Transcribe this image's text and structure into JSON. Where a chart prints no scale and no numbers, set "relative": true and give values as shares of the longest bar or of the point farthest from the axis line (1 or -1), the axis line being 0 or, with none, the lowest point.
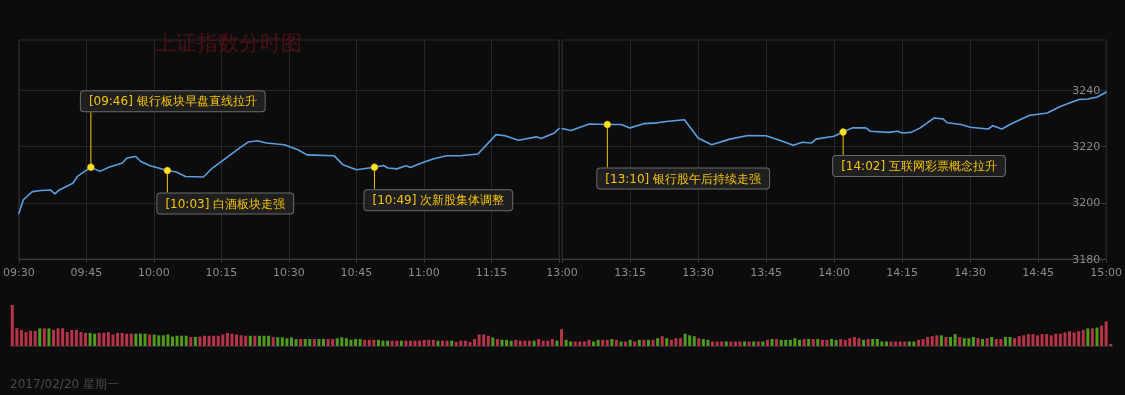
{
  "chart_data": [
    {
      "type": "line",
      "title": "上证指数分时图",
      "grid": true,
      "marker": "none",
      "tick_labels": "x",
      "x": [
        9.5,
        9.5167,
        9.55,
        9.5833,
        9.6167,
        9.6333,
        9.65,
        9.7,
        9.7167,
        9.7667,
        9.8,
        9.8333,
        9.8833,
        9.9,
        9.9333,
        9.95,
        9.9833,
        10.05,
        10.0833,
        10.1167,
        10.1833,
        10.2167,
        10.2833,
        10.3167,
        10.35,
        10.3833,
        10.4167,
        10.4833,
        10.5333,
        10.5667,
        10.6667,
        10.7,
        10.75,
        10.8167,
        10.85,
        10.8667,
        10.9,
        10.9333,
        10.95,
        10.9833,
        11.0333,
        11.0833,
        11.1333,
        11.2,
        11.2667,
        11.3,
        11.35,
        11.4167,
        11.4333,
        11.4833,
        11.5
      ],
      "series": [
        {
          "color": "#5a9fe0",
          "values": [
            3196.3,
            3201.1,
            3204.0,
            3204.4,
            3204.6,
            3203.2,
            3204.6,
            3207.0,
            3209.4,
            3212.7,
            3211.2,
            3212.7,
            3214.2,
            3216.0,
            3216.5,
            3214.8,
            3213.3,
            3211.5,
            3211.0,
            3209.4,
            3209.2,
            3212.4,
            3217.1,
            3219.5,
            3221.7,
            3222.1,
            3221.3,
            3220.7,
            3218.9,
            3217.1,
            3216.8,
            3213.6,
            3211.8,
            3212.7,
            3213.3,
            3212.4,
            3212.1,
            3213.2,
            3212.6,
            3213.9,
            3215.6,
            3216.8,
            3216.8,
            3217.4,
            3224.3,
            3223.9,
            3222.3,
            3223.5,
            3222.9,
            3224.9,
            3226.5
          ]
        }
      ],
      "xlim": [
        9.5,
        11.5
      ],
      "xticks": [
        {
          "value": 9.5,
          "label": "09:30"
        },
        {
          "value": 9.75,
          "label": "09:45"
        },
        {
          "value": 10,
          "label": "10:00"
        },
        {
          "value": 10.25,
          "label": "10:15"
        },
        {
          "value": 10.5,
          "label": "10:30"
        },
        {
          "value": 10.75,
          "label": "10:45"
        },
        {
          "value": 11,
          "label": "11:00"
        },
        {
          "value": 11.25,
          "label": "11:15"
        },
        {
          "value": 11.5,
          "label": null
        }
      ],
      "ylim": [
        3180,
        3258
      ],
      "yticks": [
        3180,
        3200,
        3220,
        3240
      ],
      "annotations": [
        {
          "text": "[09:46] 银行板块早盘直线拉升",
          "x": 9.7667,
          "y": 3212.7
        },
        {
          "text": "[10:03] 白酒板块走强",
          "x": 10.05,
          "y": 3211.5
        },
        {
          "text": "[10:49] 次新股集体调整",
          "x": 10.8167,
          "y": 3212.7
        }
      ]
    },
    {
      "type": "line",
      "grid": true,
      "marker": "none",
      "x": [
        13.0,
        13.0333,
        13.1,
        13.1667,
        13.2167,
        13.25,
        13.3,
        13.35,
        13.3833,
        13.45,
        13.5,
        13.55,
        13.6167,
        13.6833,
        13.75,
        13.8,
        13.85,
        13.8833,
        13.9167,
        13.9333,
        14.0,
        14.0333,
        14.0667,
        14.1167,
        14.1333,
        14.2,
        14.2333,
        14.25,
        14.2833,
        14.3167,
        14.3667,
        14.4,
        14.4167,
        14.4667,
        14.5,
        14.5667,
        14.5833,
        14.6167,
        14.65,
        14.7167,
        14.7833,
        14.8333,
        14.9,
        14.9333,
        14.9667,
        15.0
      ],
      "series": [
        {
          "color": "#5a9fe0",
          "values": [
            3226.5,
            3225.8,
            3228.1,
            3227.9,
            3227.9,
            3226.7,
            3228.2,
            3228.5,
            3229.0,
            3229.6,
            3223.1,
            3220.7,
            3222.7,
            3224.0,
            3223.9,
            3222.3,
            3220.5,
            3221.6,
            3221.3,
            3222.7,
            3223.7,
            3225.2,
            3226.7,
            3226.7,
            3225.5,
            3225.1,
            3225.5,
            3224.9,
            3225.1,
            3226.7,
            3230.2,
            3229.9,
            3228.5,
            3227.9,
            3226.9,
            3226.3,
            3227.5,
            3226.3,
            3228.1,
            3231.1,
            3232.0,
            3234.4,
            3236.8,
            3237.0,
            3237.7,
            3239.4
          ]
        }
      ],
      "xlim": [
        13,
        15
      ],
      "xticks": [
        {
          "value": 13,
          "label": "13:00"
        },
        {
          "value": 13.25,
          "label": "13:15"
        },
        {
          "value": 13.5,
          "label": "13:30"
        },
        {
          "value": 13.75,
          "label": "13:45"
        },
        {
          "value": 14,
          "label": "14:00"
        },
        {
          "value": 14.25,
          "label": "14:15"
        },
        {
          "value": 14.5,
          "label": "14:30"
        },
        {
          "value": 14.75,
          "label": "14:45"
        },
        {
          "value": 15,
          "label": "15:00"
        }
      ],
      "ylim": [
        3180,
        3258
      ],
      "yticks": [
        3180,
        3200,
        3220,
        3240
      ],
      "annotations": [
        {
          "text": "[13:10] 银行股午后持续走强",
          "x": 13.1667,
          "y": 3227.9
        },
        {
          "text": "[14:02] 互联网彩票概念拉升",
          "x": 14.0333,
          "y": 3225.2
        }
      ]
    },
    {
      "type": "bar",
      "relative": true,
      "categories": [
        null,
        null,
        null,
        null,
        null,
        null,
        null,
        null,
        null,
        null,
        null,
        null,
        null,
        null,
        null,
        null,
        null,
        null,
        null,
        null,
        null,
        null,
        null,
        null,
        null,
        null,
        null,
        null,
        null,
        null,
        null,
        null,
        null,
        null,
        null,
        null,
        null,
        null,
        null,
        null,
        null,
        null,
        null,
        null,
        null,
        null,
        null,
        null,
        null,
        null,
        null,
        null,
        null,
        null,
        null,
        null,
        null,
        null,
        null,
        null,
        null,
        null,
        null,
        null,
        null,
        null,
        null,
        null,
        null,
        null,
        null,
        null,
        null,
        null,
        null,
        null,
        null,
        null,
        null,
        null,
        null,
        null,
        null,
        null,
        null,
        null,
        null,
        null,
        null,
        null,
        null,
        null,
        null,
        null,
        null,
        null,
        null,
        null,
        null,
        null,
        null,
        null,
        null,
        null,
        null,
        null,
        null,
        null,
        null,
        null,
        null,
        null,
        null,
        null,
        null,
        null,
        null,
        null,
        null,
        null,
        null,
        null,
        null,
        null,
        null,
        null,
        null,
        null,
        null,
        null,
        null,
        null,
        null,
        null,
        null,
        null,
        null,
        null,
        null,
        null,
        null,
        null,
        null,
        null,
        null,
        null,
        null,
        null,
        null,
        null,
        null,
        null,
        null,
        null,
        null,
        null,
        null,
        null,
        null,
        null,
        null,
        null,
        null,
        null,
        null,
        null,
        null,
        null,
        null,
        null,
        null,
        null,
        null,
        null,
        null,
        null,
        null,
        null,
        null,
        null,
        null,
        null,
        null,
        null,
        null,
        null,
        null,
        null,
        null,
        null,
        null,
        null,
        null,
        null,
        null,
        null,
        null,
        null,
        null,
        null,
        null,
        null,
        null,
        null,
        null,
        null,
        null,
        null,
        null,
        null,
        null,
        null,
        null,
        null,
        null,
        null,
        null,
        null,
        null,
        null,
        null,
        null,
        null,
        null,
        null,
        null,
        null,
        null,
        null,
        null,
        null,
        null,
        null,
        null,
        null,
        null,
        null,
        null,
        null,
        null,
        null
      ],
      "values": [
        1.0,
        0.43,
        0.39,
        0.34,
        0.37,
        0.37,
        0.43,
        0.43,
        0.43,
        0.39,
        0.43,
        0.43,
        0.34,
        0.39,
        0.39,
        0.34,
        0.32,
        0.32,
        0.3,
        0.32,
        0.32,
        0.34,
        0.28,
        0.32,
        0.32,
        0.3,
        0.3,
        0.3,
        0.3,
        0.3,
        0.28,
        0.28,
        0.26,
        0.26,
        0.28,
        0.23,
        0.25,
        0.25,
        0.25,
        0.22,
        0.22,
        0.23,
        0.25,
        0.25,
        0.25,
        0.25,
        0.28,
        0.32,
        0.3,
        0.28,
        0.26,
        0.25,
        0.25,
        0.25,
        0.25,
        0.25,
        0.25,
        0.22,
        0.21,
        0.21,
        0.19,
        0.21,
        0.17,
        0.17,
        0.17,
        0.17,
        0.17,
        0.17,
        0.17,
        0.17,
        0.17,
        0.19,
        0.21,
        0.19,
        0.15,
        0.17,
        0.17,
        0.15,
        0.15,
        0.15,
        0.15,
        0.13,
        0.13,
        0.13,
        0.13,
        0.13,
        0.13,
        0.13,
        0.13,
        0.13,
        0.15,
        0.15,
        0.15,
        0.13,
        0.13,
        0.13,
        0.13,
        0.1,
        0.13,
        0.13,
        0.1,
        0.17,
        0.28,
        0.28,
        0.25,
        0.21,
        0.17,
        0.15,
        0.15,
        0.13,
        0.15,
        0.13,
        0.13,
        0.13,
        0.13,
        0.17,
        0.13,
        0.13,
        0.17,
        0.13,
        0.41,
        0.15,
        0.11,
        0.11,
        0.11,
        0.11,
        0.15,
        0.11,
        0.15,
        0.15,
        0.15,
        0.17,
        0.15,
        0.11,
        0.11,
        0.15,
        0.11,
        0.15,
        0.15,
        0.15,
        0.15,
        0.19,
        0.24,
        0.19,
        0.15,
        0.19,
        0.19,
        0.3,
        0.26,
        0.24,
        0.19,
        0.17,
        0.15,
        0.11,
        0.11,
        0.11,
        0.11,
        0.11,
        0.11,
        0.11,
        0.11,
        0.11,
        0.11,
        0.11,
        0.11,
        0.15,
        0.17,
        0.17,
        0.15,
        0.15,
        0.15,
        0.19,
        0.15,
        0.17,
        0.17,
        0.17,
        0.17,
        0.15,
        0.15,
        0.17,
        0.15,
        0.17,
        0.15,
        0.19,
        0.22,
        0.19,
        0.15,
        0.17,
        0.17,
        0.17,
        0.11,
        0.11,
        0.11,
        0.11,
        0.11,
        0.11,
        0.11,
        0.11,
        0.15,
        0.17,
        0.22,
        0.24,
        0.26,
        0.26,
        0.22,
        0.22,
        0.29,
        0.22,
        0.19,
        0.19,
        0.22,
        0.19,
        0.17,
        0.19,
        0.22,
        0.17,
        0.17,
        0.22,
        0.22,
        0.19,
        0.24,
        0.26,
        0.29,
        0.29,
        0.26,
        0.29,
        0.29,
        0.26,
        0.3,
        0.3,
        0.33,
        0.36,
        0.33,
        0.36,
        0.39,
        0.43,
        0.43,
        0.45,
        0.5,
        0.6,
        0.05
      ],
      "colors": [
        "#b5344a",
        "#b5344a",
        "#b5344a",
        "#b5344a",
        "#b5344a",
        "#b5344a",
        "#4f9a1f",
        "#b5344a",
        "#4f9a1f",
        "#b5344a",
        "#b5344a",
        "#b5344a",
        "#b5344a",
        "#b5344a",
        "#b5344a",
        "#b5344a",
        "#b5344a",
        "#4f9a1f",
        "#4f9a1f",
        "#b5344a",
        "#b5344a",
        "#b5344a",
        "#b5344a",
        "#b5344a",
        "#b5344a",
        "#b5344a",
        "#b5344a",
        "#4f9a1f",
        "#4f9a1f",
        "#4f9a1f",
        "#b5344a",
        "#4f9a1f",
        "#4f9a1f",
        "#4f9a1f",
        "#4f9a1f",
        "#4f9a1f",
        "#4f9a1f",
        "#4f9a1f",
        "#4f9a1f",
        "#b5344a",
        "#4f9a1f",
        "#b5344a",
        "#b5344a",
        "#b5344a",
        "#b5344a",
        "#b5344a",
        "#b5344a",
        "#b5344a",
        "#b5344a",
        "#b5344a",
        "#b5344a",
        "#b5344a",
        "#4f9a1f",
        "#b5344a",
        "#4f9a1f",
        "#4f9a1f",
        "#4f9a1f",
        "#b5344a",
        "#4f9a1f",
        "#4f9a1f",
        "#4f9a1f",
        "#4f9a1f",
        "#4f9a1f",
        "#b5344a",
        "#4f9a1f",
        "#4f9a1f",
        "#b5344a",
        "#4f9a1f",
        "#4f9a1f",
        "#b5344a",
        "#b5344a",
        "#4f9a1f",
        "#4f9a1f",
        "#4f9a1f",
        "#4f9a1f",
        "#4f9a1f",
        "#4f9a1f",
        "#b5344a",
        "#b5344a",
        "#b5344a",
        "#4f9a1f",
        "#4f9a1f",
        "#4f9a1f",
        "#b5344a",
        "#b5344a",
        "#4f9a1f",
        "#b5344a",
        "#b5344a",
        "#b5344a",
        "#b5344a",
        "#b5344a",
        "#b5344a",
        "#b5344a",
        "#4f9a1f",
        "#b5344a",
        "#b5344a",
        "#4f9a1f",
        "#b5344a",
        "#b5344a",
        "#b5344a",
        "#b5344a",
        "#b5344a",
        "#b5344a",
        "#b5344a",
        "#b5344a",
        "#4f9a1f",
        "#b5344a",
        "#4f9a1f",
        "#4f9a1f",
        "#4f9a1f",
        "#b5344a",
        "#b5344a",
        "#b5344a",
        "#b5344a",
        "#4f9a1f",
        "#b5344a",
        "#b5344a",
        "#b5344a",
        "#b5344a",
        "#4f9a1f",
        "#b5344a",
        "#4f9a1f",
        "#4f9a1f",
        "#b5344a",
        "#b5344a",
        "#b5344a",
        "#b5344a",
        "#4f9a1f",
        "#4f9a1f",
        "#b5344a",
        "#b5344a",
        "#4f9a1f",
        "#b5344a",
        "#4f9a1f",
        "#b5344a",
        "#4f9a1f",
        "#b5344a",
        "#4f9a1f",
        "#b5344a",
        "#4f9a1f",
        "#b5344a",
        "#4f9a1f",
        "#b5344a",
        "#4f9a1f",
        "#b5344a",
        "#b5344a",
        "#b5344a",
        "#4f9a1f",
        "#4f9a1f",
        "#4f9a1f",
        "#b5344a",
        "#4f9a1f",
        "#4f9a1f",
        "#b5344a",
        "#b5344a",
        "#b5344a",
        "#4f9a1f",
        "#b5344a",
        "#b5344a",
        "#b5344a",
        "#4f9a1f",
        "#b5344a",
        "#4f9a1f",
        "#b5344a",
        "#4f9a1f",
        "#b5344a",
        "#4f9a1f",
        "#b5344a",
        "#4f9a1f",
        "#4f9a1f",
        "#4f9a1f",
        "#4f9a1f",
        "#4f9a1f",
        "#b5344a",
        "#4f9a1f",
        "#b5344a",
        "#4f9a1f",
        "#b5344a",
        "#b5344a",
        "#4f9a1f",
        "#4f9a1f",
        "#b5344a",
        "#b5344a",
        "#b5344a",
        "#b5344a",
        "#b5344a",
        "#4f9a1f",
        "#b5344a",
        "#4f9a1f",
        "#4f9a1f",
        "#4f9a1f",
        "#4f9a1f",
        "#b5344a",
        "#b5344a",
        "#b5344a",
        "#b5344a",
        "#4f9a1f",
        "#4f9a1f",
        "#b5344a",
        "#b5344a",
        "#b5344a",
        "#b5344a",
        "#b5344a",
        "#4f9a1f",
        "#b5344a",
        "#4f9a1f",
        "#4f9a1f",
        "#b5344a",
        "#4f9a1f",
        "#4f9a1f",
        "#4f9a1f",
        "#b5344a",
        "#4f9a1f",
        "#b5344a",
        "#4f9a1f",
        "#b5344a",
        "#b5344a",
        "#4f9a1f",
        "#4f9a1f",
        "#b5344a",
        "#b5344a",
        "#b5344a",
        "#b5344a",
        "#b5344a",
        "#b5344a",
        "#b5344a",
        "#b5344a",
        "#b5344a",
        "#b5344a",
        "#b5344a",
        "#b5344a",
        "#b5344a",
        "#b5344a",
        "#b5344a",
        "#b5344a",
        "#4f9a1f",
        "#b5344a",
        "#4f9a1f",
        "#b5344a",
        "#b5344a",
        "#b5344a"
      ],
      "annotations": [
        "2017/02/20 星期一"
      ]
    }
  ]
}
